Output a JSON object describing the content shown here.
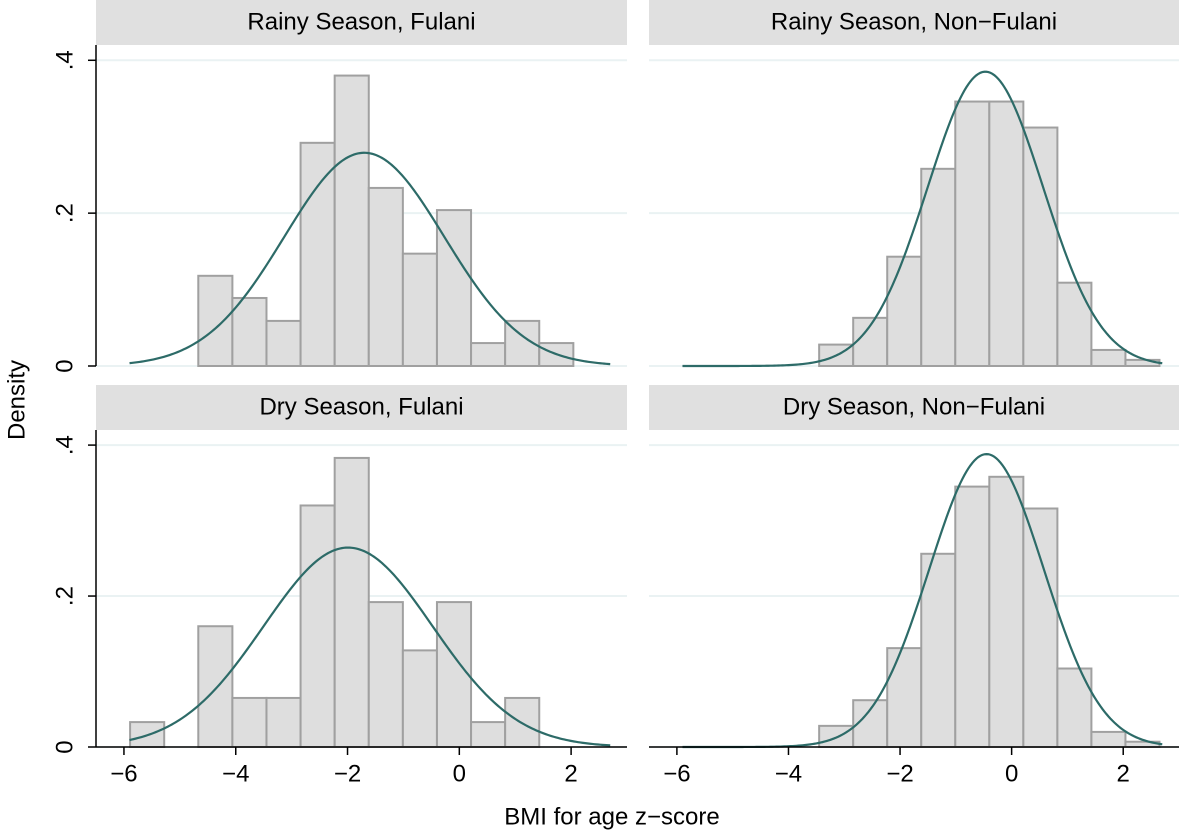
{
  "xlabel": "BMI for age z−score",
  "ylabel": "Density",
  "chart_data": [
    {
      "type": "histogram",
      "title": "Rainy Season, Fulani",
      "bins": [
        -4.67,
        -4.06,
        -3.45,
        -2.84,
        -2.23,
        -1.62,
        -1.01,
        -0.4,
        0.21,
        0.82,
        1.43,
        2.04
      ],
      "values": [
        0.118,
        0.089,
        0.059,
        0.292,
        0.38,
        0.233,
        0.147,
        0.204,
        0.03,
        0.059,
        0.03
      ],
      "color": "#dedede",
      "edge_color": "#a0a0a0",
      "curve": {
        "mean": -1.7,
        "sd": 1.43,
        "range": [
          -5.9,
          2.7
        ],
        "color": "#2d6b68"
      },
      "xlim": [
        -6.5,
        3
      ],
      "ylim": [
        0,
        0.42
      ],
      "yticks": [
        0,
        {
          "value": 0.2,
          "label": ".2"
        },
        {
          "value": 0.4,
          "label": ".4"
        }
      ],
      "ytick_labels": true,
      "grid": true
    },
    {
      "type": "histogram",
      "title": "Rainy Season, Non−Fulani",
      "bins": [
        -3.45,
        -2.84,
        -2.23,
        -1.62,
        -1.01,
        -0.4,
        0.21,
        0.82,
        1.43,
        2.04,
        2.65
      ],
      "values": [
        0.028,
        0.063,
        0.143,
        0.258,
        0.346,
        0.346,
        0.312,
        0.109,
        0.021,
        0.008
      ],
      "color": "#dedede",
      "edge_color": "#a0a0a0",
      "curve": {
        "mean": -0.47,
        "sd": 1.036,
        "range": [
          -5.9,
          2.7
        ],
        "color": "#2d6b68"
      },
      "xlim": [
        -6.5,
        3
      ],
      "ylim": [
        0,
        0.42
      ],
      "yticks": [
        0,
        0.2,
        0.4
      ],
      "ytick_labels": false,
      "grid": true
    },
    {
      "type": "histogram",
      "title": "Dry Season, Fulani",
      "bins": [
        -5.89,
        -5.28,
        -4.67,
        -4.06,
        -3.45,
        -2.84,
        -2.23,
        -1.62,
        -1.01,
        -0.4,
        0.21,
        0.82,
        1.43
      ],
      "values": [
        0.033,
        0,
        0.16,
        0.065,
        0.065,
        0.32,
        0.383,
        0.192,
        0.128,
        0.192,
        0.033,
        0.065
      ],
      "color": "#dedede",
      "edge_color": "#a0a0a0",
      "curve": {
        "mean": -1.99,
        "sd": 1.51,
        "range": [
          -5.9,
          2.7
        ],
        "color": "#2d6b68"
      },
      "xlim": [
        -6.5,
        3
      ],
      "ylim": [
        0,
        0.42
      ],
      "xticks": [
        {
          "value": -6,
          "label": "−6"
        },
        {
          "value": -4,
          "label": "−4"
        },
        {
          "value": -2,
          "label": "−2"
        },
        0,
        2
      ],
      "yticks": [
        0,
        {
          "value": 0.2,
          "label": ".2"
        },
        {
          "value": 0.4,
          "label": ".4"
        }
      ],
      "ytick_labels": true,
      "grid": true
    },
    {
      "type": "histogram",
      "title": "Dry Season, Non−Fulani",
      "bins": [
        -3.45,
        -2.84,
        -2.23,
        -1.62,
        -1.01,
        -0.4,
        0.21,
        0.82,
        1.43,
        2.04,
        2.65
      ],
      "values": [
        0.028,
        0.062,
        0.131,
        0.256,
        0.345,
        0.358,
        0.316,
        0.104,
        0.02,
        0.007
      ],
      "color": "#dedede",
      "edge_color": "#a0a0a0",
      "curve": {
        "mean": -0.45,
        "sd": 1.028,
        "range": [
          -5.9,
          2.7
        ],
        "color": "#2d6b68"
      },
      "xlim": [
        -6.5,
        3
      ],
      "ylim": [
        0,
        0.42
      ],
      "xticks": [
        {
          "value": -6,
          "label": "−6"
        },
        {
          "value": -4,
          "label": "−4"
        },
        {
          "value": -2,
          "label": "−2"
        },
        0,
        2
      ],
      "yticks": [
        0,
        0.2,
        0.4
      ],
      "ytick_labels": false,
      "grid": true
    }
  ]
}
